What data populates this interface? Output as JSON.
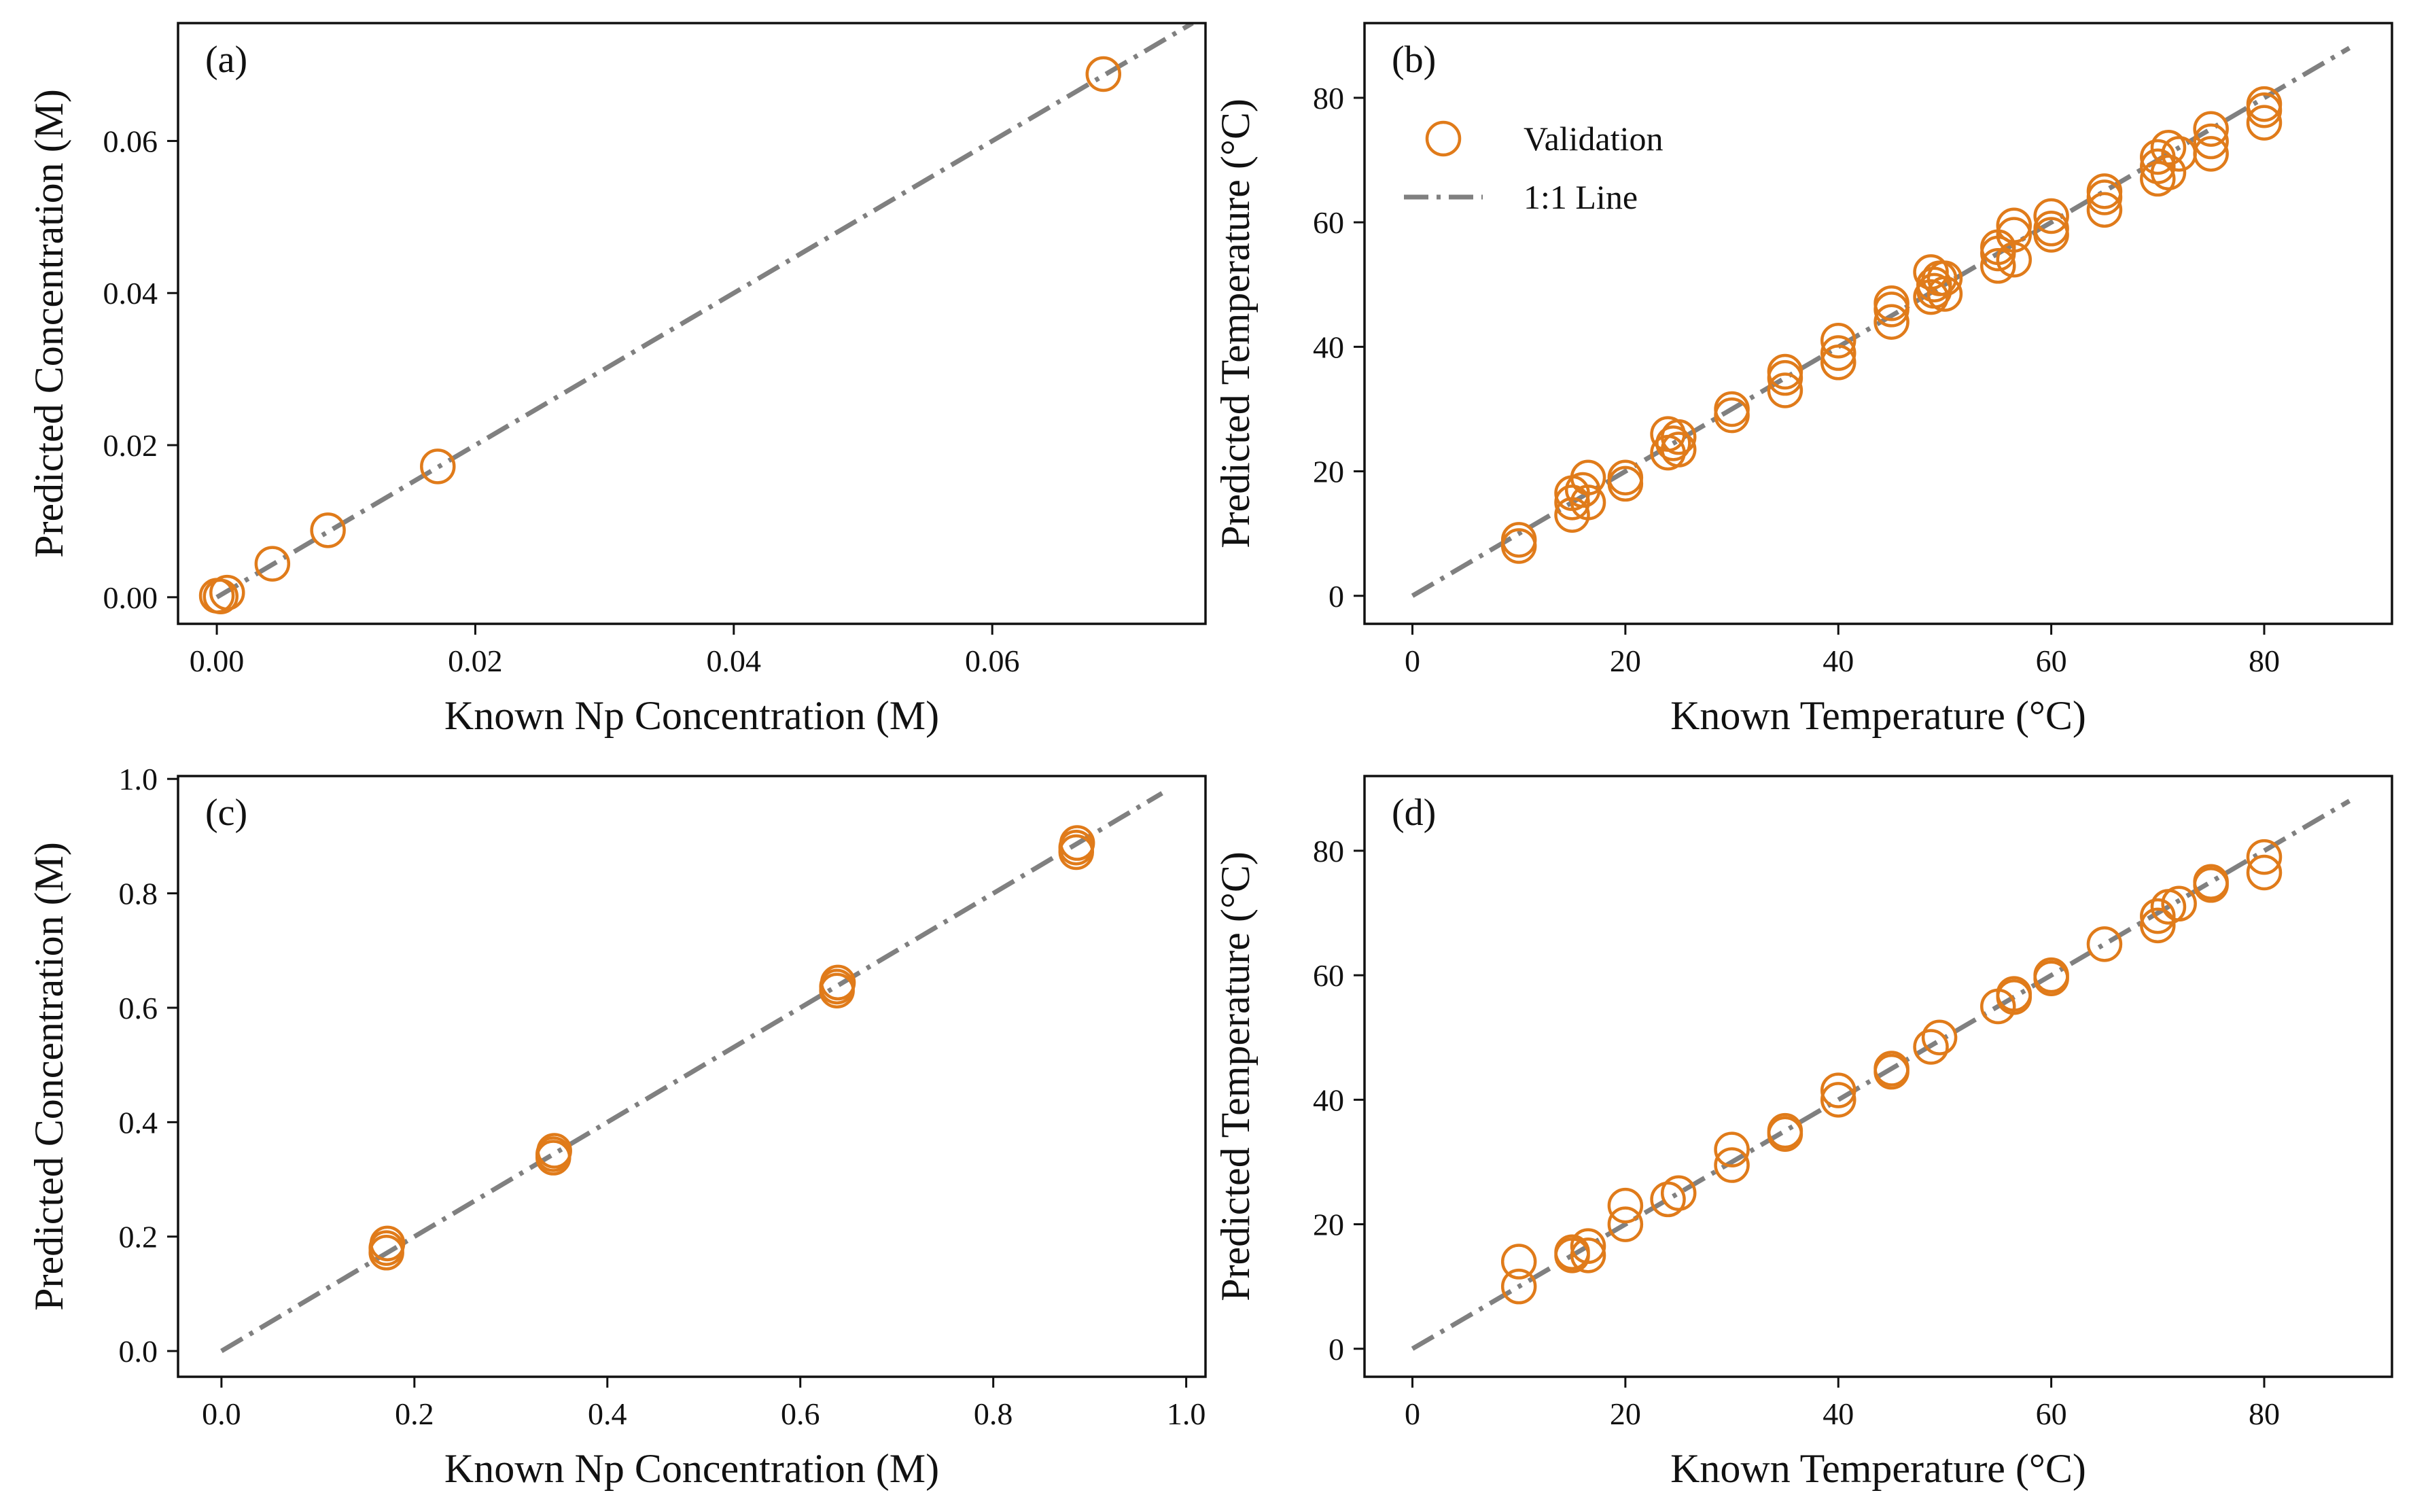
{
  "figure": {
    "marker_color": "#e07b1a",
    "line_color": "#808080",
    "axis_color": "#111111"
  },
  "chart_data": [
    {
      "type": "scatter",
      "panel_label": "(a)",
      "xlabel": "Known Np Concentration (M)",
      "ylabel": "Predicted Concentration (M)",
      "xlim": [
        -0.003,
        0.0765
      ],
      "ylim": [
        -0.0035,
        0.0755
      ],
      "xticks": [
        0.0,
        0.02,
        0.04,
        0.06
      ],
      "xtick_labels": [
        "0.00",
        "0.02",
        "0.04",
        "0.06"
      ],
      "yticks": [
        0.0,
        0.02,
        0.04,
        0.06
      ],
      "ytick_labels": [
        "0.00",
        "0.02",
        "0.04",
        "0.06"
      ],
      "reference_line": {
        "name": "1:1 Line",
        "from": 0,
        "to": 0.0755
      },
      "series": [
        {
          "name": "Validation",
          "x": [
            0.0,
            0.0003,
            0.0008,
            0.0043,
            0.0086,
            0.0171,
            0.0686
          ],
          "y": [
            0.0002,
            0.0001,
            0.0006,
            0.0044,
            0.0088,
            0.0172,
            0.0688
          ]
        }
      ],
      "legend": null
    },
    {
      "type": "scatter",
      "panel_label": "(b)",
      "xlabel": "Known Temperature (°C)",
      "ylabel": "Predicted Temperature (°C)",
      "xlim": [
        -4.5,
        92
      ],
      "ylim": [
        -4.5,
        92
      ],
      "xticks": [
        0,
        20,
        40,
        60,
        80
      ],
      "xtick_labels": [
        "0",
        "20",
        "40",
        "60",
        "80"
      ],
      "yticks": [
        0,
        20,
        40,
        60,
        80
      ],
      "ytick_labels": [
        "0",
        "20",
        "40",
        "60",
        "80"
      ],
      "reference_line": {
        "name": "1:1 Line",
        "from": 0,
        "to": 88
      },
      "series": [
        {
          "name": "Validation",
          "x": [
            10,
            10,
            15,
            15,
            15,
            16,
            16.5,
            16.5,
            20,
            20,
            24,
            24,
            24.5,
            25,
            25,
            30,
            30,
            35,
            35,
            35,
            40,
            40,
            40,
            45,
            45,
            45,
            48.7,
            48.7,
            49,
            49,
            49.5,
            50,
            50,
            55,
            55,
            55,
            56.5,
            56.5,
            56.5,
            60,
            60,
            60,
            65,
            65,
            65,
            70,
            70,
            70,
            71,
            71,
            72,
            75,
            75,
            75,
            80,
            80,
            80
          ],
          "y": [
            8,
            9,
            13,
            15,
            16.5,
            17,
            15,
            19,
            18,
            19,
            23,
            26,
            24.5,
            23.5,
            25.5,
            29,
            30,
            33,
            35,
            36,
            37.5,
            39,
            41,
            44,
            46,
            47,
            48,
            52,
            49,
            50,
            51,
            48.5,
            51,
            53,
            55,
            56,
            54,
            58,
            59.5,
            58,
            59,
            61,
            62,
            64,
            65,
            67,
            69,
            70.5,
            68,
            72,
            71,
            71,
            73,
            75,
            76,
            78,
            79
          ],
          "dense_cluster": true
        }
      ],
      "legend": {
        "location": "upper-left",
        "entries": [
          {
            "label": "Validation",
            "kind": "marker"
          },
          {
            "label": "1:1 Line",
            "kind": "line"
          }
        ]
      }
    },
    {
      "type": "scatter",
      "panel_label": "(c)",
      "xlabel": "Known Np Concentration (M)",
      "ylabel": "Predicted Concentration (M)",
      "xlim": [
        -0.045,
        1.02
      ],
      "ylim": [
        -0.045,
        1.005
      ],
      "xticks": [
        0.0,
        0.2,
        0.4,
        0.6,
        0.8,
        1.0
      ],
      "xtick_labels": [
        "0.0",
        "0.2",
        "0.4",
        "0.6",
        "0.8",
        "1.0"
      ],
      "yticks": [
        0.0,
        0.2,
        0.4,
        0.6,
        0.8,
        1.0
      ],
      "ytick_labels": [
        "0.0",
        "0.2",
        "0.4",
        "0.6",
        "0.8",
        "1.0"
      ],
      "reference_line": {
        "name": "1:1 Line",
        "from": 0,
        "to": 0.975
      },
      "series": [
        {
          "name": "Validation",
          "x": [
            0.171,
            0.171,
            0.172,
            0.344,
            0.344,
            0.345,
            0.638,
            0.638,
            0.639,
            0.886,
            0.886,
            0.887
          ],
          "y": [
            0.172,
            0.18,
            0.188,
            0.338,
            0.344,
            0.35,
            0.63,
            0.637,
            0.644,
            0.872,
            0.88,
            0.888
          ],
          "dense_cluster": true
        }
      ],
      "legend": null
    },
    {
      "type": "scatter",
      "panel_label": "(d)",
      "xlabel": "Known Temperature (°C)",
      "ylabel": "Predicted Temperature (°C)",
      "xlim": [
        -4.5,
        92
      ],
      "ylim": [
        -4.5,
        92
      ],
      "xticks": [
        0,
        20,
        40,
        60,
        80
      ],
      "xtick_labels": [
        "0",
        "20",
        "40",
        "60",
        "80"
      ],
      "yticks": [
        0,
        20,
        40,
        60,
        80
      ],
      "ytick_labels": [
        "0",
        "20",
        "40",
        "60",
        "80"
      ],
      "reference_line": {
        "name": "1:1 Line",
        "from": 0,
        "to": 88
      },
      "series": [
        {
          "name": "Validation",
          "x": [
            10,
            10,
            15,
            15,
            16.5,
            16.5,
            20,
            20,
            24,
            25,
            30,
            30,
            35,
            35,
            40,
            40,
            45,
            45,
            48.7,
            49.5,
            55,
            56.5,
            56.5,
            60,
            60,
            65,
            70,
            70,
            71,
            72,
            75,
            75,
            80,
            80
          ],
          "y": [
            10,
            14,
            15,
            15.5,
            15,
            16.5,
            20,
            23,
            24,
            25,
            29.5,
            32,
            34.5,
            35,
            40,
            41.5,
            44.5,
            45,
            48.5,
            50,
            55,
            56.5,
            57,
            59.5,
            60,
            65,
            68,
            69.5,
            71,
            71.5,
            74.5,
            75,
            76.5,
            79
          ],
          "dense_cluster": true
        }
      ],
      "legend": null
    }
  ]
}
